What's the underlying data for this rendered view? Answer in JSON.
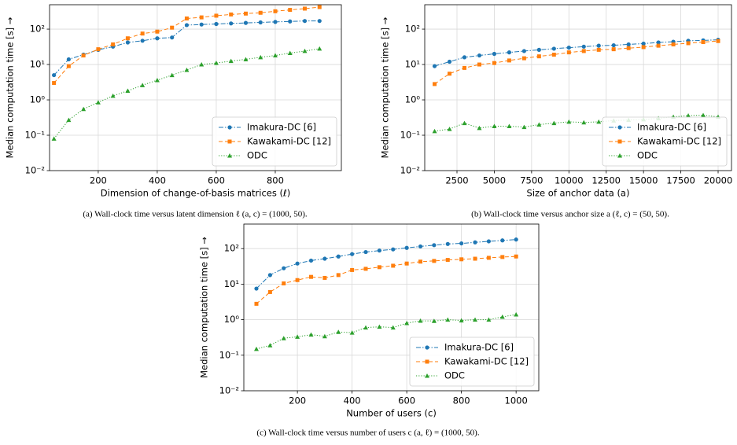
{
  "chart_data": [
    {
      "type": "line",
      "caption": "(a) Wall-clock time versus latent dimension ℓ (a, c) = (1000, 50).",
      "xlabel": "Dimension of change-of-basis matrices (ℓ)",
      "ylabel": "Median computation time [s]  →",
      "x": [
        50,
        100,
        150,
        200,
        250,
        300,
        350,
        400,
        450,
        500,
        550,
        600,
        650,
        700,
        750,
        800,
        850,
        900,
        950
      ],
      "series": [
        {
          "name": "Imakura-DC [6]",
          "color": "#1f77b4",
          "marker": "circle",
          "linestyle": "dashdot",
          "values": [
            5,
            14,
            19,
            26,
            32,
            42,
            47,
            55,
            58,
            130,
            135,
            140,
            145,
            150,
            155,
            160,
            165,
            170,
            170
          ]
        },
        {
          "name": "Kawakami-DC [12]",
          "color": "#ff7f0e",
          "marker": "square",
          "linestyle": "dashed",
          "values": [
            3,
            9,
            18,
            27,
            37,
            55,
            75,
            85,
            110,
            200,
            215,
            240,
            260,
            275,
            290,
            320,
            350,
            380,
            420
          ]
        },
        {
          "name": "ODC",
          "color": "#2ca02c",
          "marker": "triangle",
          "linestyle": "dotted",
          "values": [
            0.08,
            0.27,
            0.55,
            0.85,
            1.3,
            1.8,
            2.6,
            3.6,
            5,
            7,
            10,
            11,
            12.5,
            14,
            16,
            18,
            21,
            24,
            28
          ]
        }
      ],
      "xlim": [
        35,
        1024
      ],
      "xticks": [
        200,
        400,
        600,
        800
      ],
      "ylim": [
        0.01,
        490
      ],
      "ylog": true,
      "yticks": [
        {
          "value": 0.01,
          "label": "10⁻²"
        },
        {
          "value": 0.1,
          "label": "10⁻¹"
        },
        {
          "value": 1,
          "label": "10⁰"
        },
        {
          "value": 10,
          "label": "10¹"
        },
        {
          "value": 100,
          "label": "10²"
        }
      ],
      "grid": true,
      "legend": "lower right"
    },
    {
      "type": "line",
      "caption": "(b) Wall-clock time versus anchor size a (ℓ, c) = (50, 50).",
      "xlabel": "Size of anchor data (a)",
      "ylabel": "Median computation time [s]  →",
      "x": [
        1000,
        2000,
        3000,
        4000,
        5000,
        6000,
        7000,
        8000,
        9000,
        10000,
        11000,
        12000,
        13000,
        14000,
        15000,
        16000,
        17000,
        18000,
        19000,
        20000
      ],
      "series": [
        {
          "name": "Imakura-DC [6]",
          "color": "#1f77b4",
          "marker": "circle",
          "linestyle": "dashdot",
          "values": [
            9,
            12,
            16,
            18,
            20,
            22,
            24,
            26,
            28,
            30,
            32,
            34,
            35,
            37,
            39,
            42,
            44,
            47,
            48,
            50
          ]
        },
        {
          "name": "Kawakami-DC [12]",
          "color": "#ff7f0e",
          "marker": "square",
          "linestyle": "dashed",
          "values": [
            2.8,
            5.5,
            8,
            10,
            11,
            13,
            15,
            17,
            19,
            22,
            24,
            26,
            27,
            29,
            31,
            34,
            37,
            40,
            43,
            46
          ]
        },
        {
          "name": "ODC",
          "color": "#2ca02c",
          "marker": "triangle",
          "linestyle": "dotted",
          "values": [
            0.13,
            0.15,
            0.22,
            0.16,
            0.18,
            0.18,
            0.17,
            0.2,
            0.22,
            0.24,
            0.23,
            0.24,
            0.26,
            0.27,
            0.28,
            0.3,
            0.33,
            0.36,
            0.37,
            0.33
          ]
        }
      ],
      "xlim": [
        339,
        20896
      ],
      "xticks": [
        2500,
        5000,
        7500,
        10000,
        12500,
        15000,
        17500,
        20000
      ],
      "ylim": [
        0.01,
        490
      ],
      "ylog": true,
      "yticks": [
        {
          "value": 0.01,
          "label": "10⁻²"
        },
        {
          "value": 0.1,
          "label": "10⁻¹"
        },
        {
          "value": 1,
          "label": "10⁰"
        },
        {
          "value": 10,
          "label": "10¹"
        },
        {
          "value": 100,
          "label": "10²"
        }
      ],
      "grid": true,
      "legend": "lower right"
    },
    {
      "type": "line",
      "caption": "(c) Wall-clock time versus number of users c (a, ℓ) = (1000, 50).",
      "xlabel": "Number of users (c)",
      "ylabel": "Median computation time [s]  →",
      "x": [
        50,
        100,
        150,
        200,
        250,
        300,
        350,
        400,
        450,
        500,
        550,
        600,
        650,
        700,
        750,
        800,
        850,
        900,
        950,
        1000
      ],
      "series": [
        {
          "name": "Imakura-DC [6]",
          "color": "#1f77b4",
          "marker": "circle",
          "linestyle": "dashdot",
          "values": [
            7.5,
            18,
            28,
            38,
            46,
            52,
            60,
            70,
            80,
            88,
            95,
            105,
            115,
            125,
            135,
            140,
            150,
            160,
            170,
            180
          ]
        },
        {
          "name": "Kawakami-DC [12]",
          "color": "#ff7f0e",
          "marker": "square",
          "linestyle": "dashed",
          "values": [
            2.8,
            6,
            10.5,
            13,
            16,
            15,
            18,
            25,
            27,
            30,
            33,
            38,
            43,
            45,
            48,
            50,
            52,
            55,
            58,
            60
          ]
        },
        {
          "name": "ODC",
          "color": "#2ca02c",
          "marker": "triangle",
          "linestyle": "dotted",
          "values": [
            0.15,
            0.19,
            0.3,
            0.33,
            0.38,
            0.34,
            0.45,
            0.43,
            0.6,
            0.63,
            0.6,
            0.8,
            0.93,
            0.92,
            1.0,
            0.95,
            1.0,
            1.0,
            1.2,
            1.4
          ]
        }
      ],
      "xlim": [
        4,
        1083
      ],
      "xticks": [
        200,
        400,
        600,
        800,
        1000
      ],
      "ylim": [
        0.01,
        490
      ],
      "ylog": true,
      "yticks": [
        {
          "value": 0.01,
          "label": "10⁻²"
        },
        {
          "value": 0.1,
          "label": "10⁻¹"
        },
        {
          "value": 1,
          "label": "10⁰"
        },
        {
          "value": 10,
          "label": "10¹"
        },
        {
          "value": 100,
          "label": "10²"
        }
      ],
      "grid": true,
      "legend": "lower right"
    }
  ]
}
